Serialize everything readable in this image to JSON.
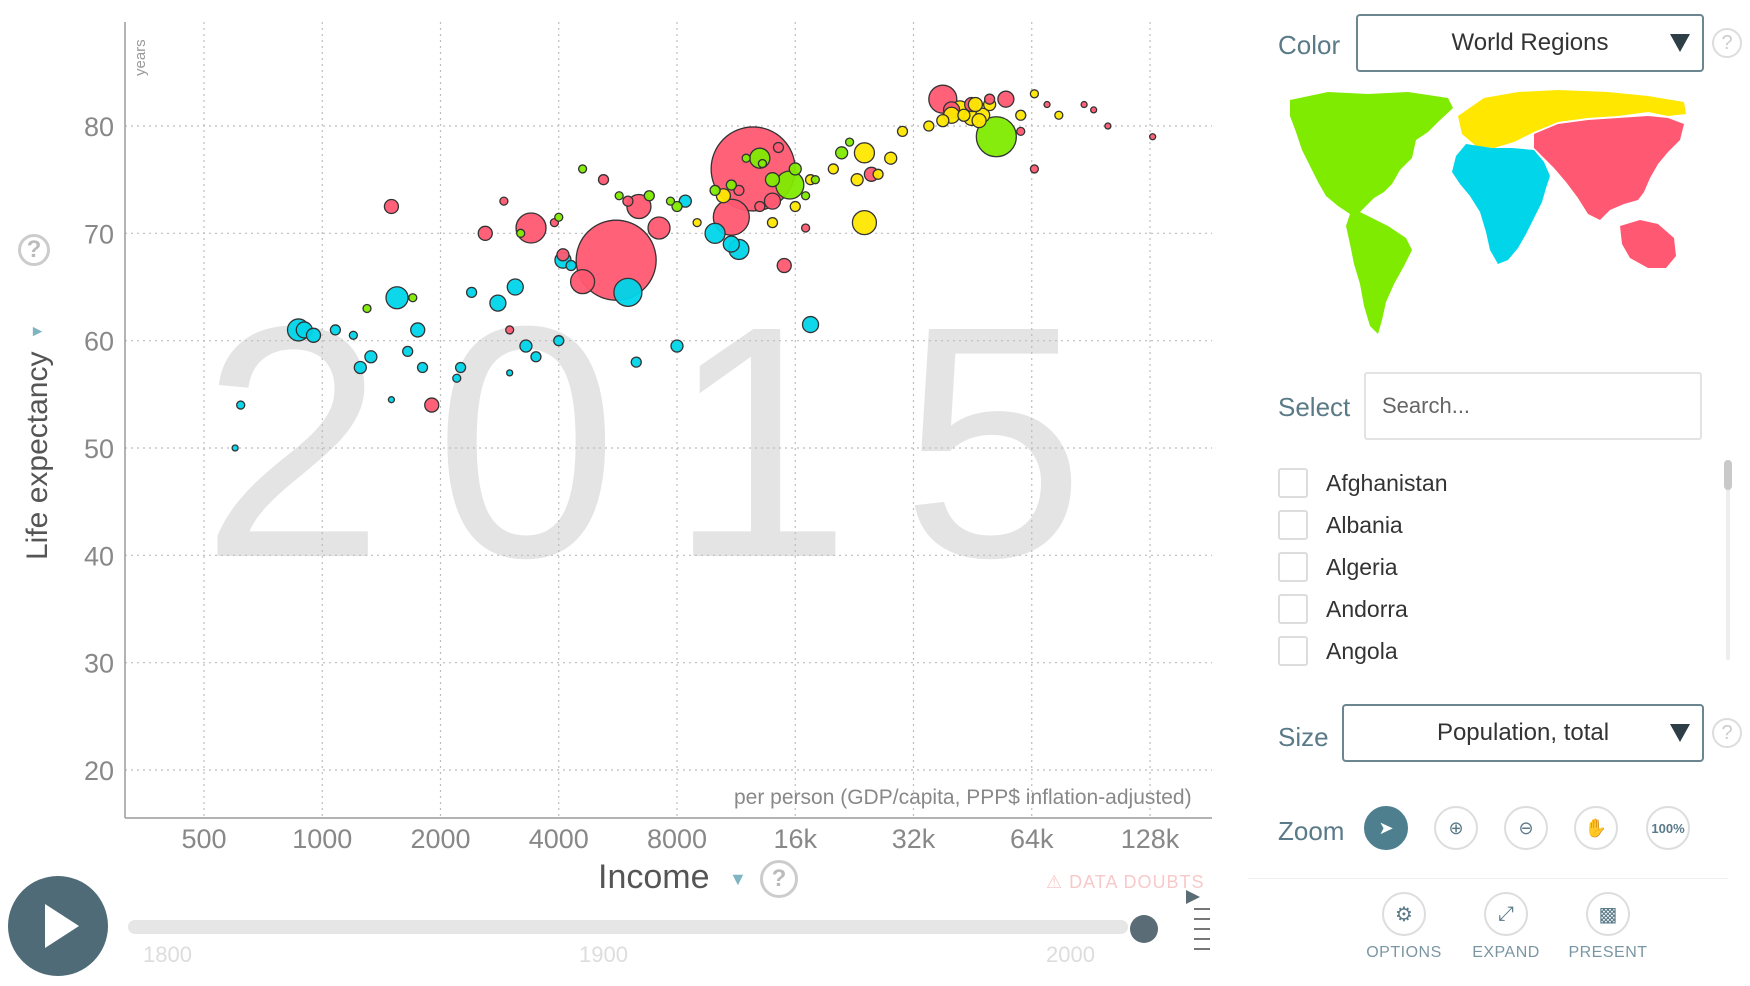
{
  "chart_data": {
    "type": "scatter",
    "year_watermark": "2015",
    "ylabel": "Life expectancy",
    "y_unit": "years",
    "xlabel": "Income",
    "x_unit": "per person (GDP/capita, PPP$ inflation-adjusted)",
    "x_scale": "log2",
    "xlim": [
      400,
      160000
    ],
    "ylim": [
      15,
      88
    ],
    "x_ticks": [
      500,
      1000,
      2000,
      4000,
      8000,
      16000,
      32000,
      64000,
      128000
    ],
    "x_tick_labels": [
      "500",
      "1000",
      "2000",
      "4000",
      "8000",
      "16k",
      "32k",
      "64k",
      "128k"
    ],
    "y_ticks": [
      20,
      30,
      40,
      50,
      60,
      70,
      80
    ],
    "y_tick_labels": [
      "20",
      "30",
      "40",
      "50",
      "60",
      "70",
      "80"
    ],
    "grid": true,
    "region_colors": {
      "africa": "#00d5e9",
      "americas": "#7feb00",
      "asia": "#ff5872",
      "europe": "#ffe700"
    },
    "series": [
      {
        "region": "asia",
        "points": [
          [
            5600,
            67.5,
            40
          ],
          [
            12500,
            76,
            42
          ],
          [
            6400,
            72.5,
            12
          ],
          [
            7200,
            70.5,
            11
          ],
          [
            11000,
            71.5,
            18
          ],
          [
            3400,
            70.5,
            15
          ],
          [
            1500,
            72.5,
            7
          ],
          [
            2600,
            70,
            7
          ],
          [
            4600,
            65.5,
            12
          ],
          [
            1900,
            54,
            7
          ],
          [
            14000,
            73,
            8
          ],
          [
            38000,
            82.5,
            14
          ],
          [
            40000,
            81.5,
            8
          ],
          [
            45000,
            82,
            7
          ],
          [
            50000,
            82.5,
            5
          ],
          [
            60000,
            79.5,
            4
          ],
          [
            65000,
            76,
            4
          ],
          [
            15000,
            67,
            7
          ],
          [
            17000,
            70.5,
            4
          ],
          [
            25000,
            75.5,
            7
          ],
          [
            14500,
            78,
            5
          ],
          [
            4100,
            68,
            6
          ],
          [
            3000,
            61,
            4
          ],
          [
            2900,
            73,
            4
          ],
          [
            3900,
            71,
            4
          ],
          [
            5200,
            75,
            5
          ],
          [
            6000,
            73,
            5
          ],
          [
            11500,
            74,
            5
          ],
          [
            13000,
            72.5,
            5
          ],
          [
            87000,
            82,
            3
          ],
          [
            92000,
            81.5,
            3
          ],
          [
            100000,
            80,
            3
          ],
          [
            130000,
            79,
            3
          ],
          [
            70000,
            82,
            3
          ],
          [
            55000,
            82.5,
            8
          ]
        ]
      },
      {
        "region": "africa",
        "points": [
          [
            6000,
            64.5,
            14
          ],
          [
            11500,
            68.5,
            10
          ],
          [
            870,
            61,
            11
          ],
          [
            950,
            60.5,
            7
          ],
          [
            1080,
            61,
            5
          ],
          [
            1550,
            64,
            11
          ],
          [
            1650,
            59,
            5
          ],
          [
            1750,
            61,
            7
          ],
          [
            1800,
            57.5,
            5
          ],
          [
            1250,
            57.5,
            6
          ],
          [
            2250,
            57.5,
            5
          ],
          [
            2200,
            56.5,
            4
          ],
          [
            2400,
            64.5,
            5
          ],
          [
            2800,
            63.5,
            8
          ],
          [
            3100,
            65,
            8
          ],
          [
            3300,
            59.5,
            6
          ],
          [
            3500,
            58.5,
            5
          ],
          [
            4000,
            60,
            5
          ],
          [
            4100,
            67.5,
            8
          ],
          [
            4300,
            67,
            5
          ],
          [
            6300,
            58,
            5
          ],
          [
            8000,
            59.5,
            6
          ],
          [
            8400,
            73,
            6
          ],
          [
            10000,
            70,
            10
          ],
          [
            11000,
            69,
            8
          ],
          [
            17500,
            61.5,
            8
          ],
          [
            1330,
            58.5,
            6
          ],
          [
            1200,
            60.5,
            4
          ],
          [
            900,
            61,
            8
          ],
          [
            620,
            54,
            4
          ],
          [
            600,
            50,
            3
          ],
          [
            1500,
            54.5,
            3
          ],
          [
            3000,
            57,
            3
          ]
        ]
      },
      {
        "region": "americas",
        "points": [
          [
            15500,
            74.5,
            14
          ],
          [
            13000,
            77,
            10
          ],
          [
            14000,
            75,
            7
          ],
          [
            16000,
            76,
            6
          ],
          [
            52000,
            79,
            20
          ],
          [
            21000,
            77.5,
            6
          ],
          [
            10000,
            74,
            5
          ],
          [
            8000,
            72.5,
            5
          ],
          [
            6800,
            73.5,
            5
          ],
          [
            5700,
            73.5,
            4
          ],
          [
            4000,
            71.5,
            4
          ],
          [
            11000,
            74.5,
            5
          ],
          [
            7700,
            73,
            4
          ],
          [
            13200,
            76.5,
            4
          ],
          [
            17000,
            73.5,
            4
          ],
          [
            18000,
            75,
            4
          ],
          [
            1700,
            64,
            4
          ],
          [
            3200,
            70,
            4
          ],
          [
            1300,
            63,
            4
          ],
          [
            4600,
            76,
            4
          ],
          [
            12000,
            77,
            4
          ],
          [
            22000,
            78.5,
            4
          ]
        ]
      },
      {
        "region": "europe",
        "points": [
          [
            24000,
            71,
            12
          ],
          [
            10500,
            73.5,
            7
          ],
          [
            24000,
            77.5,
            10
          ],
          [
            40000,
            81,
            8
          ],
          [
            42000,
            81.5,
            9
          ],
          [
            45000,
            80.8,
            8
          ],
          [
            48000,
            81,
            7
          ],
          [
            47000,
            80.5,
            7
          ],
          [
            46000,
            82,
            7
          ],
          [
            43000,
            81,
            6
          ],
          [
            38000,
            80.5,
            6
          ],
          [
            35000,
            80,
            5
          ],
          [
            30000,
            79.5,
            5
          ],
          [
            28000,
            77,
            6
          ],
          [
            26000,
            75.5,
            5
          ],
          [
            23000,
            75,
            6
          ],
          [
            20000,
            76,
            5
          ],
          [
            17500,
            75,
            5
          ],
          [
            16000,
            72.5,
            5
          ],
          [
            14000,
            71,
            5
          ],
          [
            60000,
            81,
            5
          ],
          [
            75000,
            81,
            4
          ],
          [
            65000,
            83,
            4
          ],
          [
            50000,
            82,
            6
          ],
          [
            9000,
            71,
            4
          ]
        ]
      }
    ]
  },
  "labels": {
    "y_title": "Life expectancy",
    "y_unit": "years",
    "x_title": "Income",
    "x_unit": "per person (GDP/capita, PPP$ inflation-adjusted)",
    "data_doubts": "DATA DOUBTS",
    "help_glyph": "?"
  },
  "timeline": {
    "start_year": "1800",
    "mid_year": "1900",
    "end_year": "2000",
    "current_year": "2015",
    "progress": 1.0
  },
  "side_panel": {
    "color_label": "Color",
    "color_value": "World Regions",
    "select_label": "Select",
    "search_placeholder": "Search...",
    "countries": [
      "Afghanistan",
      "Albania",
      "Algeria",
      "Andorra",
      "Angola"
    ],
    "size_label": "Size",
    "size_value": "Population, total",
    "zoom_label": "Zoom",
    "zoom_100_label": "100%",
    "buttons": {
      "options": "OPTIONS",
      "expand": "EXPAND",
      "present": "PRESENT"
    }
  },
  "map_regions": {
    "americas": "#7feb00",
    "europe": "#ffe700",
    "asia": "#ff5872",
    "africa": "#00d5e9"
  }
}
